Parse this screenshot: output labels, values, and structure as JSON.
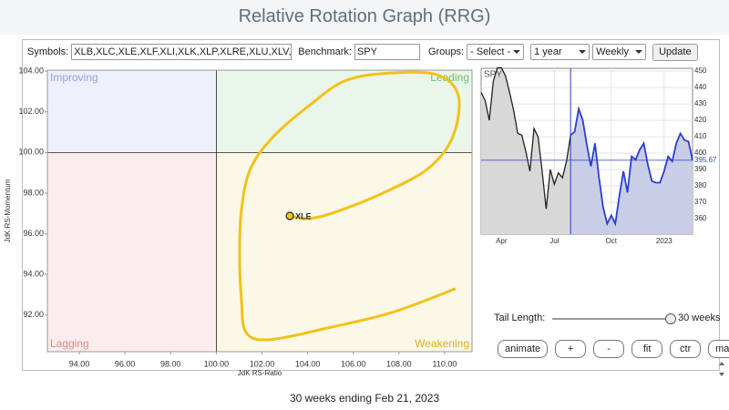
{
  "header": {
    "title": "Relative Rotation Graph (RRG)"
  },
  "toolbar": {
    "symbols_label": "Symbols:",
    "symbols": "XLB,XLC,XLE,XLF,XLI,XLK,XLP,XLRE,XLU,XLV,XL",
    "benchmark_label": "Benchmark:",
    "benchmark": "SPY",
    "groups_label": "Groups:",
    "groups": "- Select -",
    "period": "1 year",
    "frequency": "Weekly",
    "update": "Update"
  },
  "chart_data": [
    {
      "type": "rrg",
      "xlabel": "JdK RS-Ratio",
      "ylabel": "JdK RS-Momentum",
      "xlim": [
        92.6,
        111.2
      ],
      "ylim": [
        90.2,
        104.05
      ],
      "center": [
        100,
        100
      ],
      "xticks": [
        {
          "value": 94,
          "label": "94.00"
        },
        {
          "value": 96,
          "label": "96.00"
        },
        {
          "value": 98,
          "label": "98.00"
        },
        {
          "value": 100,
          "label": "100.00"
        },
        {
          "value": 102,
          "label": "102.00"
        },
        {
          "value": 104,
          "label": "104.00"
        },
        {
          "value": 106,
          "label": "106.00"
        },
        {
          "value": 108,
          "label": "108.00"
        },
        {
          "value": 110,
          "label": "110.00"
        }
      ],
      "yticks": [
        {
          "value": 92,
          "label": "92.00"
        },
        {
          "value": 94,
          "label": "94.00"
        },
        {
          "value": 96,
          "label": "96.00"
        },
        {
          "value": 98,
          "label": "98.00"
        },
        {
          "value": 100,
          "label": "100.00"
        },
        {
          "value": 102,
          "label": "102.00"
        },
        {
          "value": 104,
          "label": "104.00"
        }
      ],
      "quadrants": [
        {
          "name": "Improving",
          "color": "#eef0fb",
          "label_color": "#9aa2e2",
          "corner": "top-left"
        },
        {
          "name": "Leading",
          "color": "#eaf6ea",
          "label_color": "#6cbf6c",
          "corner": "top-right"
        },
        {
          "name": "Lagging",
          "color": "#fbeded",
          "label_color": "#e08a8a",
          "corner": "bottom-left"
        },
        {
          "name": "Weakening",
          "color": "#fbf8e7",
          "label_color": "#e3b21e",
          "corner": "bottom-right"
        }
      ],
      "series": [
        {
          "name": "XLE",
          "color": "#f2c218",
          "x": [
            110.48,
            107.69,
            104.89,
            102.3,
            101.3,
            101.1,
            101.02,
            101.1,
            101.5,
            102.5,
            104.1,
            105.69,
            107.69,
            109.68,
            110.6,
            110.36,
            109.28,
            107.29,
            105.29,
            104.1,
            103.22
          ],
          "values": [
            93.3,
            92.13,
            91.37,
            90.79,
            91.15,
            92.72,
            94.95,
            97.19,
            99.21,
            100.78,
            102.34,
            103.55,
            103.91,
            103.82,
            102.79,
            100.78,
            99.21,
            98.0,
            97.1,
            96.75,
            96.88
          ]
        }
      ]
    },
    {
      "type": "line",
      "title": "SPY",
      "ylim": [
        350.6,
        451.7
      ],
      "yticks": [
        360,
        370,
        380,
        390,
        400,
        410,
        420,
        430,
        440,
        450
      ],
      "categories": [
        null,
        null,
        null,
        null,
        null,
        "Apr",
        null,
        null,
        null,
        null,
        null,
        null,
        null,
        null,
        null,
        null,
        null,
        null,
        "Jul",
        null,
        null,
        null,
        null,
        null,
        null,
        null,
        null,
        null,
        null,
        null,
        null,
        null,
        "Oct",
        null,
        null,
        null,
        null,
        null,
        null,
        null,
        null,
        null,
        null,
        null,
        null,
        "2023",
        null,
        null,
        null,
        null,
        null,
        null,
        null
      ],
      "series": [
        {
          "color": "#222222",
          "fill": "#d8d8d8",
          "values": [
            437,
            432,
            420,
            444,
            452,
            452,
            447,
            437,
            426,
            412,
            411,
            401,
            389,
            415,
            410,
            389,
            366,
            390,
            381,
            388,
            385,
            395,
            411,
            null,
            null,
            null,
            null,
            null,
            null,
            null,
            null,
            null,
            null,
            null,
            null,
            null,
            null,
            null,
            null,
            null,
            null,
            null,
            null,
            null,
            null,
            null,
            null,
            null,
            null,
            null,
            null,
            null,
            null
          ]
        },
        {
          "color": "#2a3fd0",
          "fill": "#c9cde6",
          "values": [
            null,
            null,
            null,
            null,
            null,
            null,
            null,
            null,
            null,
            null,
            null,
            null,
            null,
            null,
            null,
            null,
            null,
            null,
            null,
            null,
            null,
            null,
            411,
            413,
            427,
            420,
            405,
            392,
            406,
            385,
            367,
            357,
            362,
            357,
            374,
            389,
            376,
            398,
            396,
            402,
            406,
            393,
            383,
            382,
            382,
            389,
            398,
            395,
            406,
            412,
            408,
            407,
            395.67
          ]
        }
      ]
    }
  ],
  "controls": {
    "tail_label": "Tail Length:",
    "tail_value": "30 weeks",
    "buttons": [
      "animate",
      "+",
      "-",
      "fit",
      "ctr",
      "max"
    ]
  },
  "footer": "30 weeks ending Feb 21, 2023"
}
